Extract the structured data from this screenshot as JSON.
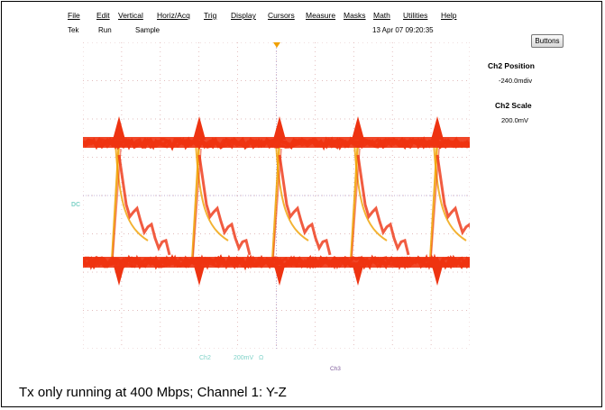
{
  "menu": [
    "File",
    "Edit",
    "Vertical",
    "Horiz/Acq",
    "Trig",
    "Display",
    "Cursors",
    "Measure",
    "Masks",
    "Math",
    "Utilities",
    "Help"
  ],
  "status": {
    "brand": "Tek",
    "run_state": "Run",
    "acq_mode": "Sample",
    "timestamp": "13 Apr 07 09:20:35"
  },
  "buttons_label": "Buttons",
  "readout": {
    "ch2_position_label": "Ch2 Position",
    "ch2_position_value": "-240.0mdiv",
    "ch2_scale_label": "Ch2 Scale",
    "ch2_scale_value": "200.0mV"
  },
  "scope": {
    "ch_marker": "DC",
    "ch2_name": "Ch2",
    "ch2_scale": "200mV",
    "ch2_icon": "Ω",
    "ch3_name": "Ch3",
    "trace_color": "#ee3311",
    "overlay_color": "#f0a000",
    "grid_color": "#d9a6a6",
    "marker_color": "#45c8b8"
  },
  "caption": "Tx only running at 400 Mbps; Channel 1: Y-Z"
}
